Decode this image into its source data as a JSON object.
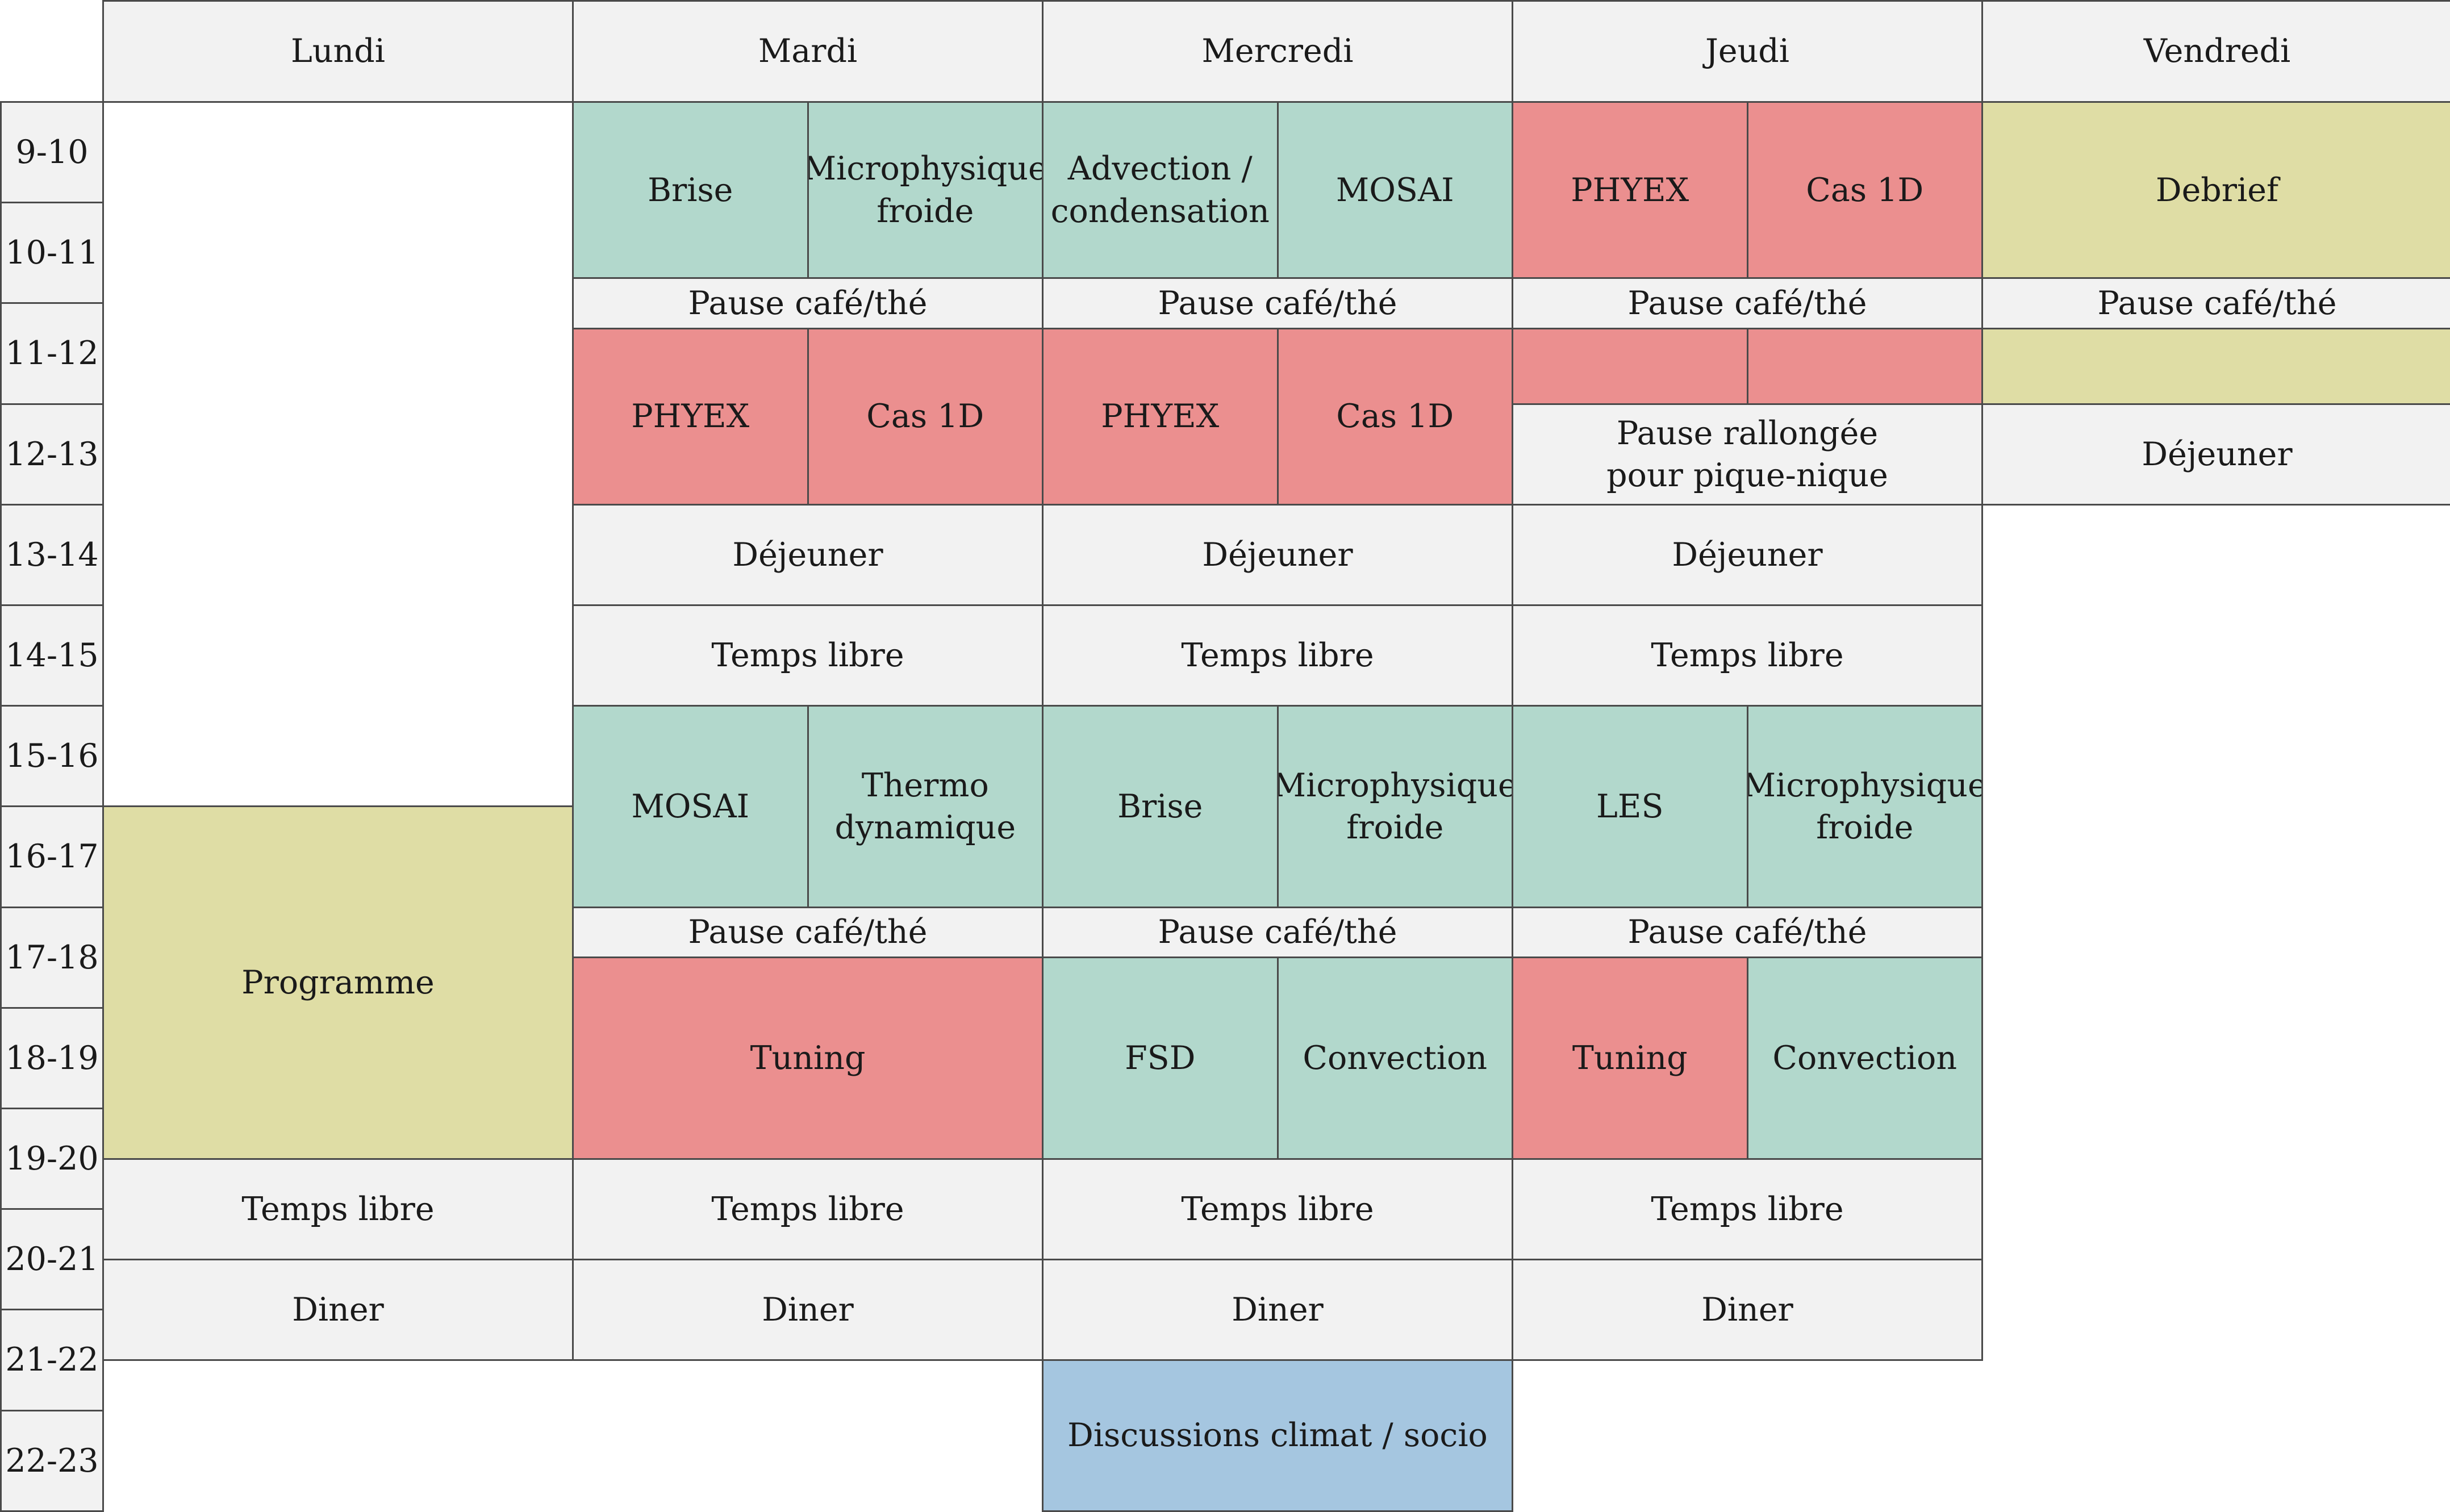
{
  "days": [
    "Lundi",
    "Mardi",
    "Mercredi",
    "Jeudi",
    "Vendredi"
  ],
  "hours": [
    "9-10",
    "10-11",
    "11-12",
    "12-13",
    "13-14",
    "14-15",
    "15-16",
    "16-17",
    "17-18",
    "18-19",
    "19-20",
    "20-21",
    "21-22",
    "22-23"
  ],
  "colors": {
    "grey": "#f2f2f2",
    "green": "#b2d8cc",
    "red": "#eb8f8f",
    "yellow": "#dfdda5",
    "blue": "#a5c6e0",
    "border": "#4a4a4a"
  },
  "events": [
    {
      "day": 1,
      "span": 1,
      "sub": 0,
      "w": 1,
      "start": "9:00",
      "end": "10:45",
      "label": "Brise",
      "color": "green"
    },
    {
      "day": 1,
      "span": 1,
      "sub": 1,
      "w": 1,
      "start": "9:00",
      "end": "10:45",
      "label": "Microphysique\nfroide",
      "color": "green"
    },
    {
      "day": 2,
      "span": 1,
      "sub": 0,
      "w": 1,
      "start": "9:00",
      "end": "10:45",
      "label": "Advection /\ncondensation",
      "color": "green"
    },
    {
      "day": 2,
      "span": 1,
      "sub": 1,
      "w": 1,
      "start": "9:00",
      "end": "10:45",
      "label": "MOSAI",
      "color": "green"
    },
    {
      "day": 3,
      "span": 1,
      "sub": 0,
      "w": 1,
      "start": "9:00",
      "end": "10:45",
      "label": "PHYEX",
      "color": "red"
    },
    {
      "day": 3,
      "span": 1,
      "sub": 1,
      "w": 1,
      "start": "9:00",
      "end": "10:45",
      "label": "Cas 1D",
      "color": "red"
    },
    {
      "day": 4,
      "span": 1,
      "sub": 0,
      "w": 2,
      "start": "9:00",
      "end": "10:45",
      "label": "Debrief",
      "color": "yellow"
    },
    {
      "day": 1,
      "span": 1,
      "sub": 0,
      "w": 2,
      "start": "10:45",
      "end": "11:15",
      "label": "Pause café/thé",
      "color": "grey"
    },
    {
      "day": 2,
      "span": 1,
      "sub": 0,
      "w": 2,
      "start": "10:45",
      "end": "11:15",
      "label": "Pause café/thé",
      "color": "grey"
    },
    {
      "day": 3,
      "span": 1,
      "sub": 0,
      "w": 2,
      "start": "10:45",
      "end": "11:15",
      "label": "Pause café/thé",
      "color": "grey"
    },
    {
      "day": 4,
      "span": 1,
      "sub": 0,
      "w": 2,
      "start": "10:45",
      "end": "11:15",
      "label": "Pause café/thé",
      "color": "grey"
    },
    {
      "day": 1,
      "span": 1,
      "sub": 0,
      "w": 1,
      "start": "11:15",
      "end": "13:00",
      "label": "PHYEX",
      "color": "red"
    },
    {
      "day": 1,
      "span": 1,
      "sub": 1,
      "w": 1,
      "start": "11:15",
      "end": "13:00",
      "label": "Cas 1D",
      "color": "red"
    },
    {
      "day": 2,
      "span": 1,
      "sub": 0,
      "w": 1,
      "start": "11:15",
      "end": "13:00",
      "label": "PHYEX",
      "color": "red"
    },
    {
      "day": 2,
      "span": 1,
      "sub": 1,
      "w": 1,
      "start": "11:15",
      "end": "13:00",
      "label": "Cas 1D",
      "color": "red"
    },
    {
      "day": 3,
      "span": 1,
      "sub": 0,
      "w": 1,
      "start": "11:15",
      "end": "12:00",
      "label": "",
      "color": "red"
    },
    {
      "day": 3,
      "span": 1,
      "sub": 1,
      "w": 1,
      "start": "11:15",
      "end": "12:00",
      "label": "",
      "color": "red"
    },
    {
      "day": 4,
      "span": 1,
      "sub": 0,
      "w": 2,
      "start": "11:15",
      "end": "12:00",
      "label": "",
      "color": "yellow"
    },
    {
      "day": 3,
      "span": 1,
      "sub": 0,
      "w": 2,
      "start": "12:00",
      "end": "13:00",
      "label": "Pause rallongée\npour pique-nique",
      "color": "grey"
    },
    {
      "day": 4,
      "span": 1,
      "sub": 0,
      "w": 2,
      "start": "12:00",
      "end": "13:00",
      "label": "Déjeuner",
      "color": "grey"
    },
    {
      "day": 1,
      "span": 1,
      "sub": 0,
      "w": 2,
      "start": "13:00",
      "end": "14:00",
      "label": "Déjeuner",
      "color": "grey"
    },
    {
      "day": 2,
      "span": 1,
      "sub": 0,
      "w": 2,
      "start": "13:00",
      "end": "14:00",
      "label": "Déjeuner",
      "color": "grey"
    },
    {
      "day": 3,
      "span": 1,
      "sub": 0,
      "w": 2,
      "start": "13:00",
      "end": "14:00",
      "label": "Déjeuner",
      "color": "grey"
    },
    {
      "day": 1,
      "span": 1,
      "sub": 0,
      "w": 2,
      "start": "14:00",
      "end": "15:00",
      "label": "Temps libre",
      "color": "grey"
    },
    {
      "day": 2,
      "span": 1,
      "sub": 0,
      "w": 2,
      "start": "14:00",
      "end": "15:00",
      "label": "Temps libre",
      "color": "grey"
    },
    {
      "day": 3,
      "span": 1,
      "sub": 0,
      "w": 2,
      "start": "14:00",
      "end": "15:00",
      "label": "Temps libre",
      "color": "grey"
    },
    {
      "day": 1,
      "span": 1,
      "sub": 0,
      "w": 1,
      "start": "15:00",
      "end": "17:00",
      "label": "MOSAI",
      "color": "green"
    },
    {
      "day": 1,
      "span": 1,
      "sub": 1,
      "w": 1,
      "start": "15:00",
      "end": "17:00",
      "label": "Thermo\ndynamique",
      "color": "green"
    },
    {
      "day": 2,
      "span": 1,
      "sub": 0,
      "w": 1,
      "start": "15:00",
      "end": "17:00",
      "label": "Brise",
      "color": "green"
    },
    {
      "day": 2,
      "span": 1,
      "sub": 1,
      "w": 1,
      "start": "15:00",
      "end": "17:00",
      "label": "Microphysique\nfroide",
      "color": "green"
    },
    {
      "day": 3,
      "span": 1,
      "sub": 0,
      "w": 1,
      "start": "15:00",
      "end": "17:00",
      "label": "LES",
      "color": "green"
    },
    {
      "day": 3,
      "span": 1,
      "sub": 1,
      "w": 1,
      "start": "15:00",
      "end": "17:00",
      "label": "Microphysique\nfroide",
      "color": "green"
    },
    {
      "day": 0,
      "span": 1,
      "sub": 0,
      "w": 2,
      "start": "16:00",
      "end": "19:30",
      "label": "Programme",
      "color": "yellow"
    },
    {
      "day": 1,
      "span": 1,
      "sub": 0,
      "w": 2,
      "start": "17:00",
      "end": "17:30",
      "label": "Pause café/thé",
      "color": "grey"
    },
    {
      "day": 2,
      "span": 1,
      "sub": 0,
      "w": 2,
      "start": "17:00",
      "end": "17:30",
      "label": "Pause café/thé",
      "color": "grey"
    },
    {
      "day": 3,
      "span": 1,
      "sub": 0,
      "w": 2,
      "start": "17:00",
      "end": "17:30",
      "label": "Pause café/thé",
      "color": "grey"
    },
    {
      "day": 1,
      "span": 1,
      "sub": 0,
      "w": 2,
      "start": "17:30",
      "end": "19:30",
      "label": "Tuning",
      "color": "red"
    },
    {
      "day": 2,
      "span": 1,
      "sub": 0,
      "w": 1,
      "start": "17:30",
      "end": "19:30",
      "label": "FSD",
      "color": "green"
    },
    {
      "day": 2,
      "span": 1,
      "sub": 1,
      "w": 1,
      "start": "17:30",
      "end": "19:30",
      "label": "Convection",
      "color": "green"
    },
    {
      "day": 3,
      "span": 1,
      "sub": 0,
      "w": 1,
      "start": "17:30",
      "end": "19:30",
      "label": "Tuning",
      "color": "red"
    },
    {
      "day": 3,
      "span": 1,
      "sub": 1,
      "w": 1,
      "start": "17:30",
      "end": "19:30",
      "label": "Convection",
      "color": "green"
    },
    {
      "day": 0,
      "span": 1,
      "sub": 0,
      "w": 2,
      "start": "19:30",
      "end": "20:30",
      "label": "Temps libre",
      "color": "grey"
    },
    {
      "day": 1,
      "span": 1,
      "sub": 0,
      "w": 2,
      "start": "19:30",
      "end": "20:30",
      "label": "Temps libre",
      "color": "grey"
    },
    {
      "day": 2,
      "span": 1,
      "sub": 0,
      "w": 2,
      "start": "19:30",
      "end": "20:30",
      "label": "Temps libre",
      "color": "grey"
    },
    {
      "day": 3,
      "span": 1,
      "sub": 0,
      "w": 2,
      "start": "19:30",
      "end": "20:30",
      "label": "Temps libre",
      "color": "grey"
    },
    {
      "day": 0,
      "span": 1,
      "sub": 0,
      "w": 2,
      "start": "20:30",
      "end": "21:30",
      "label": "Diner",
      "color": "grey"
    },
    {
      "day": 1,
      "span": 1,
      "sub": 0,
      "w": 2,
      "start": "20:30",
      "end": "21:30",
      "label": "Diner",
      "color": "grey"
    },
    {
      "day": 2,
      "span": 1,
      "sub": 0,
      "w": 2,
      "start": "20:30",
      "end": "21:30",
      "label": "Diner",
      "color": "grey"
    },
    {
      "day": 3,
      "span": 1,
      "sub": 0,
      "w": 2,
      "start": "20:30",
      "end": "21:30",
      "label": "Diner",
      "color": "grey"
    },
    {
      "day": 2,
      "span": 1,
      "sub": 0,
      "w": 2,
      "start": "21:30",
      "end": "23:00",
      "label": "Discussions climat / socio",
      "color": "blue"
    }
  ]
}
